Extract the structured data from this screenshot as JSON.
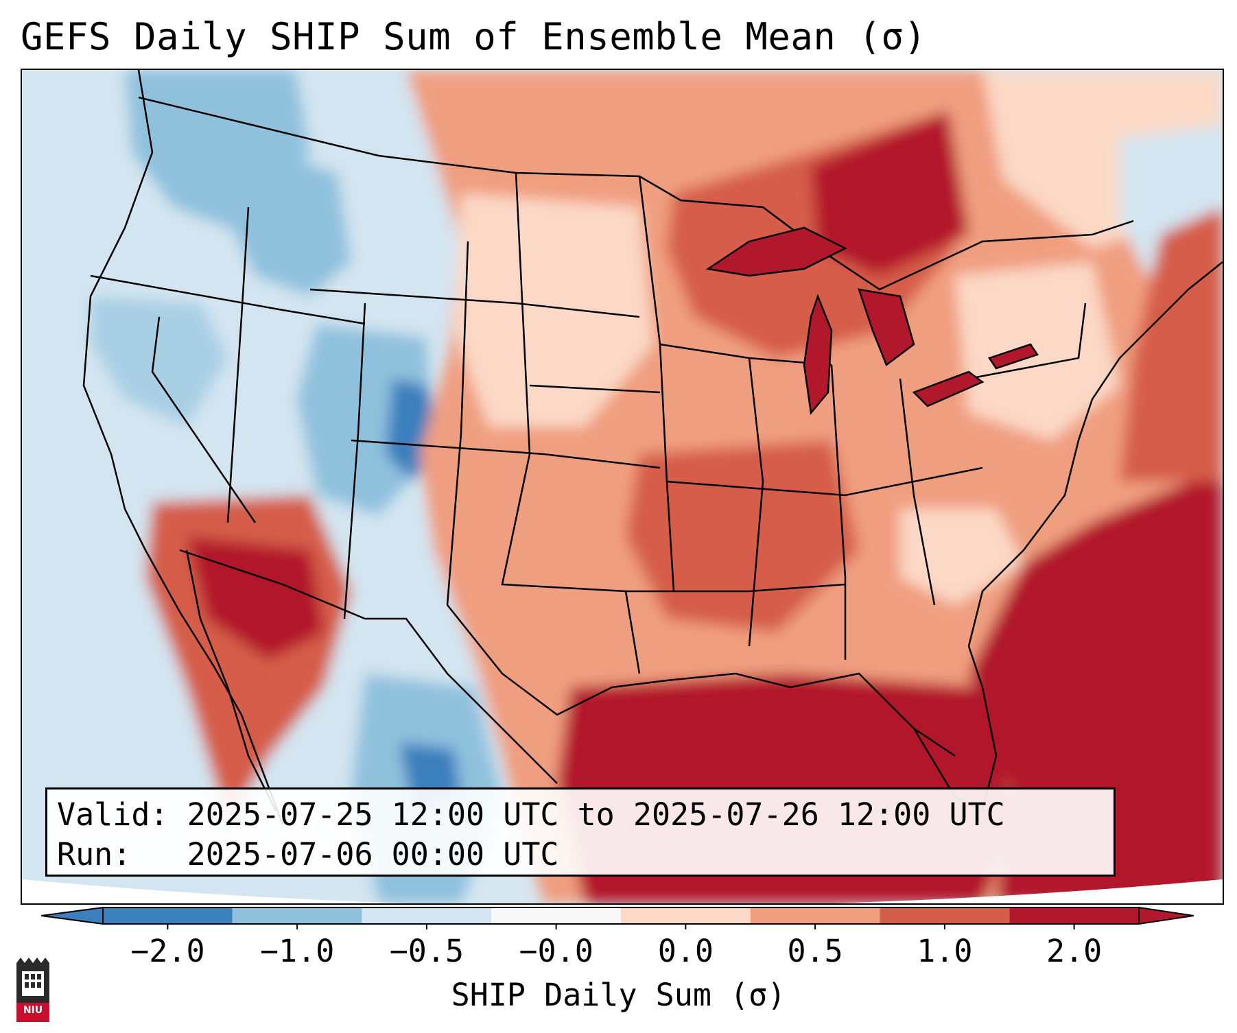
{
  "title": "GEFS Daily SHIP Sum of Ensemble Mean (σ)",
  "valid": {
    "valid_label": "Valid:",
    "valid_value": "2025-07-25 12:00 UTC to 2025-07-26 12:00 UTC",
    "run_label": "Run:",
    "run_value": "2025-07-06 00:00 UTC"
  },
  "colorbar": {
    "label": "SHIP Daily Sum (σ)",
    "ticks": [
      "−2.0",
      "−1.0",
      "−0.5",
      "−0.0",
      "0.0",
      "0.5",
      "1.0",
      "2.0"
    ],
    "colors": [
      "#3b7fbd",
      "#8fc1dd",
      "#d3e5f0",
      "#f8f8f8",
      "#fbd9c6",
      "#f09e80",
      "#d55d4a",
      "#b2182b"
    ],
    "extend": "both"
  },
  "logo": {
    "text": "NIU"
  },
  "map_colors": {
    "ocean_pacific": "#d6e7f1",
    "ocean_atlantic": "#b2182b",
    "west_land": "#d3e5f0",
    "east_land": "#f09e80"
  }
}
